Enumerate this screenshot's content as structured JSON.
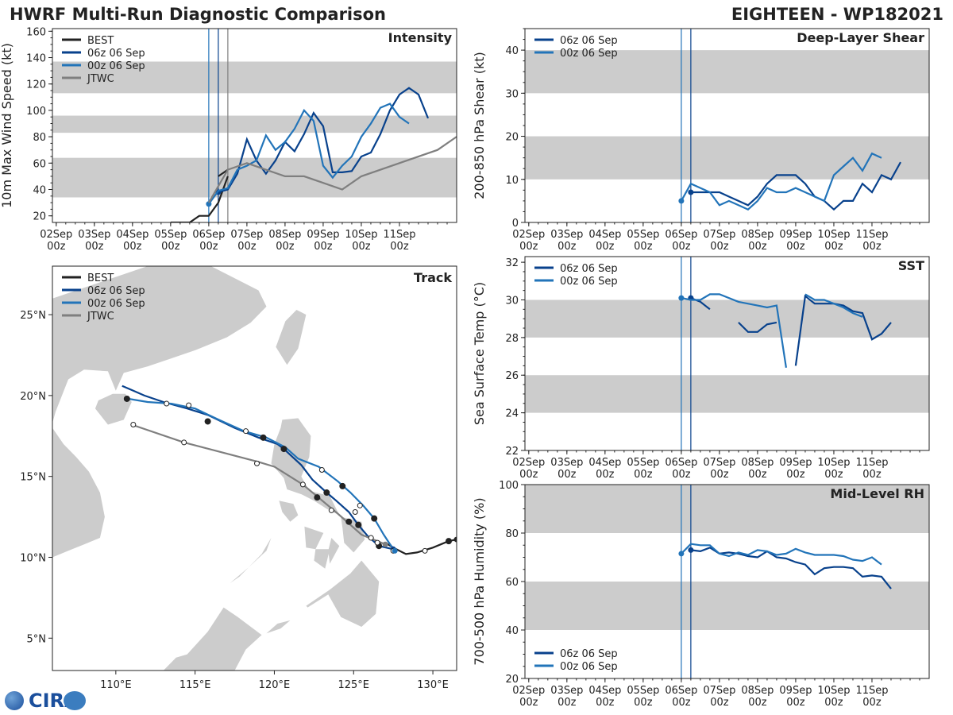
{
  "header": {
    "title": "HWRF Multi-Run Diagnostic Comparison",
    "storm": "EIGHTEEN - WP182021"
  },
  "logo": {
    "text": "CIRA"
  },
  "colors": {
    "best": "#222222",
    "run06": "#08418c",
    "run00": "#2274b9",
    "jtwc": "#7f7f7f",
    "band": "#cccccc",
    "land": "#cccccc"
  },
  "time_axis": {
    "labels": [
      "02Sep",
      "03Sep",
      "04Sep",
      "05Sep",
      "06Sep",
      "07Sep",
      "08Sep",
      "09Sep",
      "10Sep",
      "11Sep"
    ],
    "sublabel": "00z"
  },
  "chart_data": [
    {
      "id": "intensity",
      "type": "line",
      "title": "Intensity",
      "ylabel": "10m Max Wind Speed (kt)",
      "ylim": [
        15,
        162
      ],
      "yticks": [
        20,
        40,
        60,
        80,
        100,
        120,
        140,
        160
      ],
      "x_units": "days since 02Sep 00z",
      "xlim": [
        -0.1,
        10.5
      ],
      "bands": [
        [
          34,
          64
        ],
        [
          83,
          96
        ],
        [
          113,
          137
        ]
      ],
      "vlines": [
        {
          "x": 4.0,
          "color": "run00"
        },
        {
          "x": 4.25,
          "color": "run06"
        },
        {
          "x": 4.5,
          "color": "jtwc"
        }
      ],
      "legend": [
        "BEST",
        "06z 06 Sep",
        "00z 06 Sep",
        "JTWC"
      ],
      "series": [
        {
          "name": "BEST",
          "color": "best",
          "x": [
            3.0,
            3.25,
            3.5,
            3.75,
            4.0,
            4.25,
            4.5
          ],
          "y": [
            15,
            15,
            15,
            20,
            20,
            30,
            50
          ]
        },
        {
          "name": "BEST2",
          "color": "best",
          "x": [
            4.25,
            4.5
          ],
          "y": [
            50,
            55
          ]
        },
        {
          "name": "06z 06 Sep",
          "color": "run06",
          "x": [
            4.25,
            4.5,
            4.75,
            5.0,
            5.25,
            5.5,
            5.75,
            6.0,
            6.25,
            6.5,
            6.75,
            7.0,
            7.25,
            7.5,
            7.75,
            8.0,
            8.25,
            8.5,
            8.75,
            9.0,
            9.25,
            9.5,
            9.75,
            10.0,
            10.25,
            10.5
          ],
          "y": [
            38,
            40,
            52,
            78,
            62,
            52,
            62,
            76,
            69,
            82,
            98,
            88,
            53,
            53,
            54,
            65,
            68,
            82,
            100,
            112,
            117,
            112,
            94,
            null,
            null,
            null
          ],
          "marker": [
            4.25
          ]
        },
        {
          "name": "00z 06 Sep",
          "color": "run00",
          "x": [
            4.0,
            4.25,
            4.5,
            4.75,
            5.0,
            5.25,
            5.5,
            5.75,
            6.0,
            6.25,
            6.5,
            6.75,
            7.0,
            7.25,
            7.5,
            7.75,
            8.0,
            8.25,
            8.5,
            8.75,
            9.0,
            9.25,
            9.5,
            9.75,
            10.0
          ],
          "y": [
            29,
            39,
            41,
            55,
            58,
            62,
            81,
            70,
            76,
            86,
            100,
            92,
            58,
            49,
            58,
            65,
            80,
            90,
            102,
            105,
            95,
            90,
            null,
            null,
            null
          ],
          "marker": [
            4.0
          ]
        },
        {
          "name": "JTWC",
          "color": "jtwc",
          "x": [
            4.0,
            4.5,
            5.0,
            6.0,
            6.5,
            7.0,
            7.5,
            8.0,
            9.0,
            10.0,
            10.5
          ],
          "y": [
            30,
            55,
            60,
            50,
            50,
            45,
            40,
            50,
            60,
            70,
            80
          ]
        }
      ]
    },
    {
      "id": "shear",
      "type": "line",
      "title": "Deep-Layer Shear",
      "ylabel": "200-850 hPa Shear (kt)",
      "ylim": [
        0,
        45
      ],
      "yticks": [
        0,
        10,
        20,
        30,
        40
      ],
      "bands": [
        [
          10,
          20
        ],
        [
          30,
          40
        ]
      ],
      "legend": [
        "06z 06 Sep",
        "00z 06 Sep"
      ],
      "series": [
        {
          "name": "06z 06 Sep",
          "color": "run06",
          "x": [
            4.25,
            4.5,
            4.75,
            5.0,
            5.25,
            5.5,
            5.75,
            6.0,
            6.25,
            6.5,
            6.75,
            7.0,
            7.25,
            7.5,
            7.75,
            8.0,
            8.25,
            8.5,
            8.75,
            9.0,
            9.25,
            9.5,
            9.75,
            10.0
          ],
          "y": [
            7,
            7,
            7,
            7,
            6,
            5,
            4,
            6,
            9,
            11,
            11,
            11,
            9,
            6,
            5,
            3,
            5,
            5,
            9,
            7,
            11,
            10,
            14,
            null
          ],
          "marker": [
            4.25
          ]
        },
        {
          "name": "00z 06 Sep",
          "color": "run00",
          "x": [
            4.0,
            4.25,
            4.5,
            4.75,
            5.0,
            5.25,
            5.5,
            5.75,
            6.0,
            6.25,
            6.5,
            6.75,
            7.0,
            7.25,
            7.5,
            7.75,
            8.0,
            8.25,
            8.5,
            8.75,
            9.0,
            9.25,
            9.5,
            9.75
          ],
          "y": [
            5,
            9,
            8,
            7,
            4,
            5,
            4,
            3,
            5,
            8,
            7,
            7,
            8,
            7,
            6,
            5,
            11,
            13,
            15,
            12,
            16,
            15,
            null,
            null
          ],
          "marker": [
            4.0
          ]
        }
      ]
    },
    {
      "id": "sst",
      "type": "line",
      "title": "SST",
      "ylabel": "Sea Surface Temp (°C)",
      "ylim": [
        22,
        32.3
      ],
      "yticks": [
        22,
        24,
        26,
        28,
        30,
        32
      ],
      "bands": [
        [
          24,
          26
        ],
        [
          28,
          30
        ]
      ],
      "legend": [
        "06z 06 Sep",
        "00z 06 Sep"
      ],
      "series": [
        {
          "name": "06z 06 Sep",
          "color": "run06",
          "segments": [
            [
              [
                4.25,
                30.1
              ],
              [
                4.5,
                29.9
              ],
              [
                4.75,
                29.5
              ]
            ],
            [
              [
                5.5,
                28.8
              ],
              [
                5.75,
                28.3
              ],
              [
                6.0,
                28.3
              ],
              [
                6.25,
                28.7
              ],
              [
                6.5,
                28.8
              ]
            ],
            [
              [
                7.0,
                26.5
              ],
              [
                7.25,
                30.2
              ],
              [
                7.5,
                29.8
              ],
              [
                7.75,
                29.8
              ],
              [
                8.0,
                29.8
              ],
              [
                8.25,
                29.7
              ],
              [
                8.5,
                29.4
              ],
              [
                8.75,
                29.3
              ],
              [
                9.0,
                27.9
              ],
              [
                9.25,
                28.2
              ],
              [
                9.5,
                28.8
              ]
            ]
          ],
          "marker": [
            [
              4.25,
              30.1
            ]
          ]
        },
        {
          "name": "00z 06 Sep",
          "color": "run00",
          "segments": [
            [
              [
                4.0,
                30.1
              ],
              [
                4.25,
                30.0
              ],
              [
                4.5,
                30.0
              ],
              [
                4.75,
                30.3
              ],
              [
                5.0,
                30.3
              ],
              [
                5.5,
                29.9
              ],
              [
                6.0,
                29.7
              ],
              [
                6.25,
                29.6
              ],
              [
                6.5,
                29.7
              ],
              [
                6.75,
                26.4
              ]
            ],
            [
              [
                7.25,
                30.3
              ],
              [
                7.5,
                30.0
              ],
              [
                7.75,
                30.0
              ],
              [
                8.0,
                29.8
              ],
              [
                8.25,
                29.6
              ],
              [
                8.5,
                29.3
              ],
              [
                8.75,
                29.1
              ]
            ]
          ],
          "marker": [
            [
              4.0,
              30.1
            ]
          ]
        }
      ]
    },
    {
      "id": "rh",
      "type": "line",
      "title": "Mid-Level RH",
      "ylabel": "700-500 hPa Humidity (%)",
      "ylim": [
        20,
        100
      ],
      "yticks": [
        20,
        40,
        60,
        80,
        100
      ],
      "bands": [
        [
          40,
          60
        ],
        [
          80,
          100
        ]
      ],
      "legend": [
        "06z 06 Sep",
        "00z 06 Sep"
      ],
      "series": [
        {
          "name": "06z 06 Sep",
          "color": "run06",
          "x": [
            4.25,
            4.5,
            4.75,
            5.0,
            5.25,
            5.5,
            5.75,
            6.0,
            6.25,
            6.5,
            6.75,
            7.0,
            7.25,
            7.5,
            7.75,
            8.0,
            8.25,
            8.5,
            8.75,
            9.0,
            9.25,
            9.5
          ],
          "y": [
            73,
            72.5,
            74,
            71.5,
            72,
            71.5,
            70.5,
            70,
            72.5,
            70,
            69.5,
            68,
            67,
            63,
            65.5,
            66,
            66,
            65.5,
            62,
            62.5,
            62,
            57
          ],
          "marker": [
            4.25
          ]
        },
        {
          "name": "00z 06 Sep",
          "color": "run00",
          "x": [
            4.0,
            4.25,
            4.5,
            4.75,
            5.0,
            5.25,
            5.5,
            5.75,
            6.0,
            6.25,
            6.5,
            6.75,
            7.0,
            7.25,
            7.5,
            7.75,
            8.0,
            8.25,
            8.5,
            8.75,
            9.0,
            9.25
          ],
          "y": [
            71.5,
            75.5,
            75,
            75,
            71.5,
            70.5,
            72,
            71,
            73,
            72.5,
            71,
            71.5,
            73.5,
            72,
            71,
            71,
            71,
            70.5,
            69,
            68.5,
            70,
            67
          ],
          "marker": [
            4.0
          ]
        }
      ]
    },
    {
      "id": "track",
      "type": "scatter",
      "title": "Track",
      "xlim": [
        106,
        131.5
      ],
      "ylim": [
        3,
        28
      ],
      "xticks": [
        110,
        115,
        120,
        125,
        130
      ],
      "xtick_labels": [
        "110°E",
        "115°E",
        "120°E",
        "125°E",
        "130°E"
      ],
      "yticks": [
        5,
        10,
        15,
        20,
        25
      ],
      "ytick_labels": [
        "5°N",
        "10°N",
        "15°N",
        "20°N",
        "25°N"
      ],
      "legend": [
        "BEST",
        "06z 06 Sep",
        "00z 06 Sep",
        "JTWC"
      ],
      "series": [
        {
          "name": "BEST",
          "color": "best",
          "points": [
            [
              131.5,
              11.1
            ],
            [
              131.0,
              11.0
            ],
            [
              130.0,
              10.6
            ],
            [
              129.0,
              10.3
            ],
            [
              128.3,
              10.2
            ],
            [
              127.5,
              10.6
            ],
            [
              127.0,
              10.9
            ]
          ],
          "filled": [
            [
              131.0,
              11.0
            ]
          ],
          "open": [
            [
              129.5,
              10.4
            ]
          ]
        },
        {
          "name": "06z 06 Sep",
          "color": "run06",
          "points": [
            [
              127.5,
              10.5
            ],
            [
              126.6,
              10.7
            ],
            [
              125.9,
              11.3
            ],
            [
              125.3,
              12.0
            ],
            [
              124.7,
              12.8
            ],
            [
              123.9,
              13.5
            ],
            [
              123.3,
              14.0
            ],
            [
              122.4,
              14.8
            ],
            [
              121.7,
              15.7
            ],
            [
              120.6,
              16.7
            ],
            [
              120.2,
              17.0
            ],
            [
              119.0,
              17.4
            ],
            [
              117.5,
              18.0
            ],
            [
              115.8,
              18.8
            ],
            [
              114.5,
              19.2
            ],
            [
              113.0,
              19.6
            ],
            [
              111.8,
              20.0
            ],
            [
              111.1,
              20.3
            ],
            [
              110.4,
              20.6
            ]
          ],
          "filled": [
            [
              126.6,
              10.7
            ],
            [
              125.3,
              12.0
            ],
            [
              124.7,
              12.2
            ],
            [
              123.3,
              14.0
            ],
            [
              122.7,
              13.7
            ],
            [
              120.6,
              16.7
            ],
            [
              115.8,
              18.4
            ],
            [
              110.7,
              19.8
            ]
          ]
        },
        {
          "name": "00z 06 Sep",
          "color": "run00",
          "points": [
            [
              127.6,
              10.4
            ],
            [
              127.3,
              10.8
            ],
            [
              126.9,
              11.4
            ],
            [
              126.3,
              12.4
            ],
            [
              125.6,
              13.2
            ],
            [
              124.8,
              14.0
            ],
            [
              124.0,
              14.7
            ],
            [
              122.8,
              15.6
            ],
            [
              121.5,
              16.1
            ],
            [
              120.7,
              16.8
            ],
            [
              119.5,
              17.4
            ],
            [
              118.1,
              17.8
            ],
            [
              116.5,
              18.5
            ],
            [
              115.0,
              19.2
            ],
            [
              113.5,
              19.5
            ],
            [
              112.0,
              19.6
            ],
            [
              110.8,
              19.8
            ]
          ],
          "filled": [
            [
              126.3,
              12.4
            ],
            [
              124.3,
              14.4
            ],
            [
              119.3,
              17.4
            ]
          ],
          "open": [
            [
              127.5,
              10.4
            ],
            [
              126.5,
              10.9
            ],
            [
              125.4,
              13.2
            ],
            [
              123.0,
              15.4
            ],
            [
              118.2,
              17.8
            ],
            [
              114.6,
              19.4
            ],
            [
              113.2,
              19.5
            ]
          ]
        },
        {
          "name": "JTWC",
          "color": "jtwc",
          "points": [
            [
              127.0,
              10.8
            ],
            [
              125.5,
              11.4
            ],
            [
              124.0,
              12.7
            ],
            [
              121.8,
              14.5
            ],
            [
              120.0,
              15.6
            ],
            [
              119.0,
              15.9
            ],
            [
              114.3,
              17.1
            ],
            [
              111.0,
              18.2
            ]
          ],
          "open": [
            [
              126.1,
              11.2
            ],
            [
              125.1,
              12.8
            ],
            [
              123.6,
              12.9
            ],
            [
              121.8,
              14.5
            ],
            [
              118.9,
              15.8
            ],
            [
              114.3,
              17.1
            ],
            [
              111.1,
              18.2
            ]
          ]
        }
      ]
    }
  ]
}
